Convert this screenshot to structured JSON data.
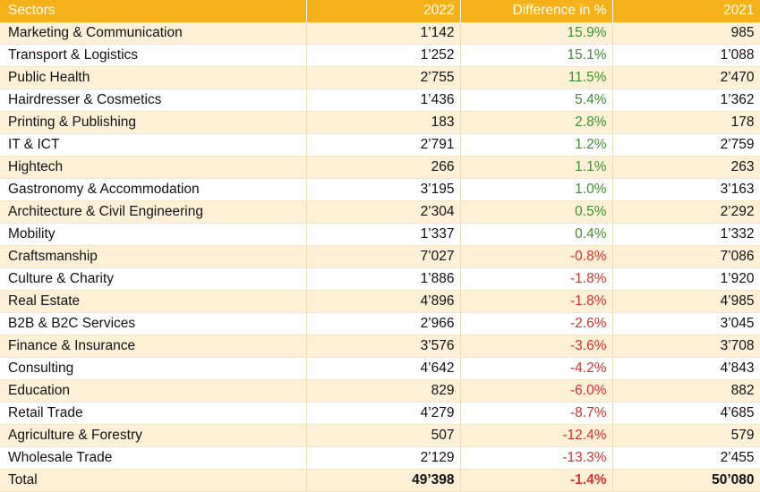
{
  "chart_data": {
    "type": "table",
    "columns": [
      "Sectors",
      "2022",
      "Difference in %",
      "2021"
    ],
    "rows": [
      [
        "Marketing & Communication",
        "1’142",
        "15.9%",
        "985"
      ],
      [
        "Transport & Logistics",
        "1’252",
        "15.1%",
        "1’088"
      ],
      [
        "Public Health",
        "2’755",
        "11.5%",
        "2’470"
      ],
      [
        "Hairdresser & Cosmetics",
        "1’436",
        "5.4%",
        "1’362"
      ],
      [
        "Printing & Publishing",
        "183",
        "2.8%",
        "178"
      ],
      [
        "IT & ICT",
        "2’791",
        "1.2%",
        "2’759"
      ],
      [
        "Hightech",
        "266",
        "1.1%",
        "263"
      ],
      [
        "Gastronomy & Accommodation",
        "3’195",
        "1.0%",
        "3’163"
      ],
      [
        "Architecture & Civil Engineering",
        "2’304",
        "0.5%",
        "2’292"
      ],
      [
        "Mobility",
        "1’337",
        "0.4%",
        "1’332"
      ],
      [
        "Craftsmanship",
        "7’027",
        "-0.8%",
        "7’086"
      ],
      [
        "Culture & Charity",
        "1’886",
        "-1.8%",
        "1’920"
      ],
      [
        "Real Estate",
        "4’896",
        "-1.8%",
        "4’985"
      ],
      [
        "B2B & B2C Services",
        "2’966",
        "-2.6%",
        "3’045"
      ],
      [
        "Finance & Insurance",
        "3’576",
        "-3.6%",
        "3’708"
      ],
      [
        "Consulting",
        "4’642",
        "-4.2%",
        "4’843"
      ],
      [
        "Education",
        "829",
        "-6.0%",
        "882"
      ],
      [
        "Retail Trade",
        "4’279",
        "-8.7%",
        "4’685"
      ],
      [
        "Agriculture & Forestry",
        "507",
        "-12.4%",
        "579"
      ],
      [
        "Wholesale Trade",
        "2’129",
        "-13.3%",
        "2’455"
      ]
    ],
    "total": [
      "Total",
      "49’398",
      "-1.4%",
      "50’080"
    ]
  },
  "colors": {
    "header_bg": "#f5b11a",
    "band_bg": "#fdf0d6",
    "positive": "#3f8f2f",
    "negative": "#d0342c"
  }
}
